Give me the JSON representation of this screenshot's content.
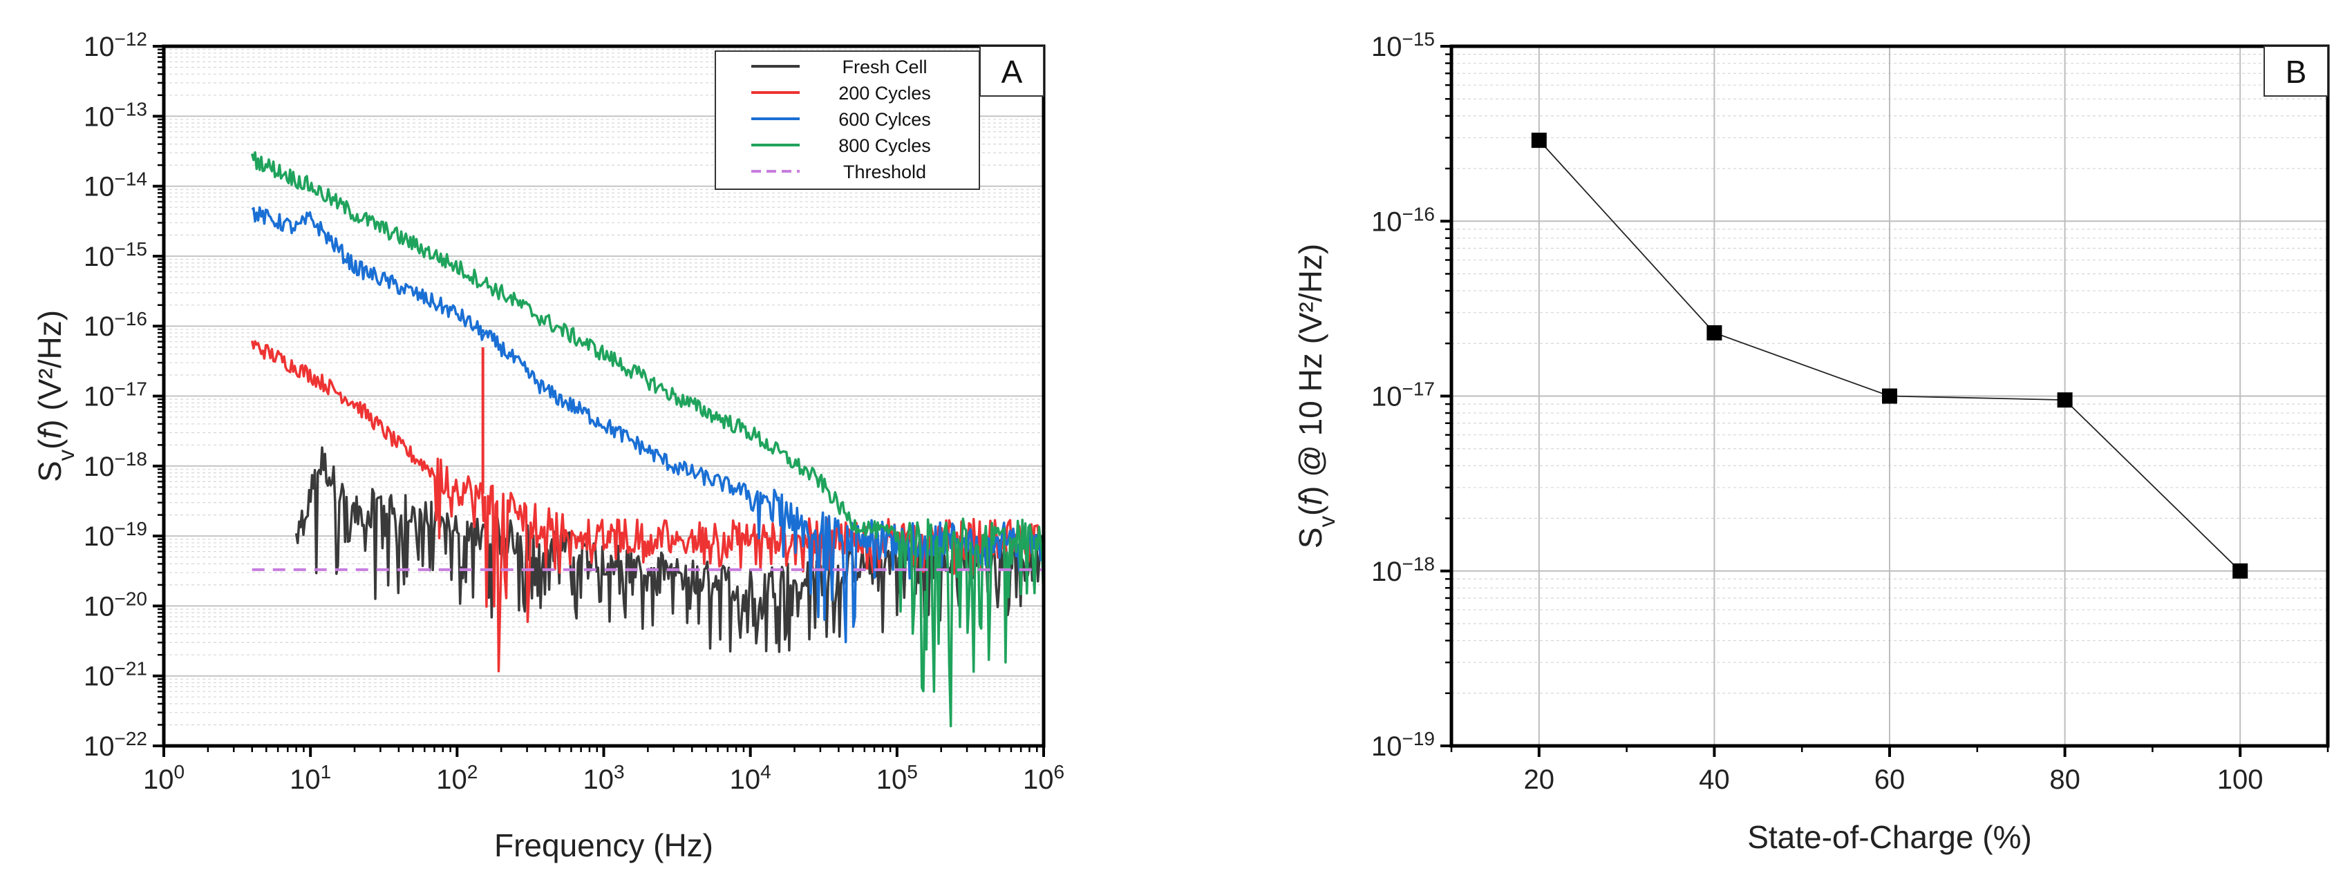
{
  "chart_data": [
    {
      "panel": "A",
      "type": "line",
      "xscale": "log",
      "yscale": "log",
      "xlabel": "Frequency (Hz)",
      "ylabel": "Sv(f) (V²/Hz)",
      "ylabel_parts": {
        "s": "S",
        "sub": "v",
        "open": "(",
        "f": "f",
        "close": ") (V²/Hz)"
      },
      "xlim": [
        1,
        1000000
      ],
      "ylim": [
        1e-22,
        1e-12
      ],
      "x_ticks": [
        {
          "value": 1,
          "base": "10",
          "exp": "0"
        },
        {
          "value": 10,
          "base": "10",
          "exp": "1"
        },
        {
          "value": 100,
          "base": "10",
          "exp": "2"
        },
        {
          "value": 1000,
          "base": "10",
          "exp": "3"
        },
        {
          "value": 10000,
          "base": "10",
          "exp": "4"
        },
        {
          "value": 100000,
          "base": "10",
          "exp": "5"
        },
        {
          "value": 1000000,
          "base": "10",
          "exp": "6"
        }
      ],
      "y_ticks": [
        {
          "value": 1e-12,
          "base": "10",
          "exp": "−12"
        },
        {
          "value": 1e-13,
          "base": "10",
          "exp": "−13"
        },
        {
          "value": 1e-14,
          "base": "10",
          "exp": "−14"
        },
        {
          "value": 1e-15,
          "base": "10",
          "exp": "−15"
        },
        {
          "value": 1e-16,
          "base": "10",
          "exp": "−16"
        },
        {
          "value": 1e-17,
          "base": "10",
          "exp": "−17"
        },
        {
          "value": 1e-18,
          "base": "10",
          "exp": "−18"
        },
        {
          "value": 1e-19,
          "base": "10",
          "exp": "−19"
        },
        {
          "value": 1e-20,
          "base": "10",
          "exp": "−20"
        },
        {
          "value": 1e-21,
          "base": "10",
          "exp": "−21"
        },
        {
          "value": 1e-22,
          "base": "10",
          "exp": "−22"
        }
      ],
      "grid": true,
      "legend_position": "top-right",
      "series": [
        {
          "name": "Fresh Cell",
          "color": "#3a3a3a",
          "style": "solid",
          "points": [
            [
              8,
              1e-19
            ],
            [
              12,
              1.2e-18
            ],
            [
              15,
              5e-19
            ],
            [
              20,
              2e-19
            ],
            [
              30,
              3e-19
            ],
            [
              50,
              2e-19
            ],
            [
              100,
              1.5e-19
            ],
            [
              200,
              1e-19
            ],
            [
              400,
              8e-20
            ],
            [
              1000,
              5e-20
            ],
            [
              3000,
              3e-20
            ],
            [
              10000,
              2e-20
            ],
            [
              30000,
              3e-20
            ],
            [
              100000,
              5e-20
            ],
            [
              300000,
              6e-20
            ],
            [
              1000000,
              6e-20
            ]
          ],
          "noise_floor": [
            [
              8,
              2e-20
            ],
            [
              100,
              1e-20
            ],
            [
              1000,
              5e-21
            ],
            [
              10000,
              2e-21
            ],
            [
              100000,
              5e-21
            ],
            [
              1000000,
              1e-20
            ]
          ]
        },
        {
          "name": "200 Cycles",
          "color": "#ee3333",
          "style": "solid",
          "points": [
            [
              4,
              5.5e-17
            ],
            [
              10,
              2e-17
            ],
            [
              20,
              8e-18
            ],
            [
              40,
              2e-18
            ],
            [
              70,
              8e-19
            ],
            [
              100,
              5e-19
            ],
            [
              150,
              4e-19
            ],
            [
              200,
              3e-19
            ],
            [
              300,
              2e-19
            ],
            [
              400,
              1.5e-19
            ],
            [
              1000,
              1e-19
            ],
            [
              10000,
              1e-19
            ],
            [
              100000,
              1e-19
            ],
            [
              1000000,
              1e-19
            ]
          ],
          "spikes": [
            {
              "x": 150,
              "y": 5e-17
            }
          ],
          "noise_floor": [
            [
              70,
              8e-20
            ],
            [
              200,
              1e-21
            ],
            [
              400,
              3e-20
            ],
            [
              1000,
              5e-20
            ],
            [
              10000,
              3e-20
            ],
            [
              100000,
              3e-20
            ],
            [
              1000000,
              4e-20
            ]
          ]
        },
        {
          "name": "600 Cylces",
          "color": "#1a6fd4",
          "style": "solid",
          "points": [
            [
              4,
              4.2e-15
            ],
            [
              8,
              2.5e-15
            ],
            [
              10,
              3.5e-15
            ],
            [
              20,
              7e-16
            ],
            [
              50,
              3e-16
            ],
            [
              100,
              1.5e-16
            ],
            [
              200,
              5e-17
            ],
            [
              400,
              1.2e-17
            ],
            [
              1000,
              4e-18
            ],
            [
              3000,
              1e-18
            ],
            [
              10000,
              4e-19
            ],
            [
              30000,
              1.3e-19
            ],
            [
              40000,
              1e-19
            ],
            [
              100000,
              9e-20
            ],
            [
              1000000,
              9e-20
            ]
          ],
          "spikes": [
            {
              "x": 150,
              "y": 9e-17
            }
          ],
          "noise_floor": [
            [
              10000,
              6e-20
            ],
            [
              30000,
              3e-21
            ],
            [
              40000,
              1e-21
            ],
            [
              100000,
              3e-20
            ],
            [
              1000000,
              3e-20
            ]
          ]
        },
        {
          "name": "800 Cycles",
          "color": "#1fa35c",
          "style": "solid",
          "points": [
            [
              4,
              2.5e-14
            ],
            [
              10,
              1e-14
            ],
            [
              20,
              4e-15
            ],
            [
              50,
              1.5e-15
            ],
            [
              100,
              7e-16
            ],
            [
              200,
              3e-16
            ],
            [
              400,
              1.2e-16
            ],
            [
              1000,
              4e-17
            ],
            [
              3000,
              1e-17
            ],
            [
              10000,
              3e-18
            ],
            [
              30000,
              6e-19
            ],
            [
              50000,
              1.5e-19
            ],
            [
              100000,
              1e-19
            ],
            [
              1000000,
              1e-19
            ]
          ],
          "noise_floor": [
            [
              100000,
              1e-21
            ],
            [
              300000,
              1e-22
            ],
            [
              1000000,
              3e-21
            ]
          ]
        },
        {
          "name": "Threshold",
          "color": "#c77dde",
          "style": "dashed",
          "points": [
            [
              4,
              3.3e-20
            ],
            [
              1000000,
              3.3e-20
            ]
          ]
        }
      ]
    },
    {
      "panel": "B",
      "type": "line",
      "xscale": "linear",
      "yscale": "log",
      "xlabel": "State-of-Charge (%)",
      "ylabel": "Sv(f) @ 10 Hz (V²/Hz)",
      "ylabel_parts": {
        "s": "S",
        "sub": "v",
        "open": "(",
        "f": "f",
        "close": ") @ 10 Hz (V²/Hz)"
      },
      "xlim": [
        10,
        110
      ],
      "ylim": [
        1e-19,
        1e-15
      ],
      "x_ticks": [
        20,
        40,
        60,
        80,
        100
      ],
      "y_ticks": [
        {
          "value": 1e-15,
          "base": "10",
          "exp": "−15"
        },
        {
          "value": 1e-16,
          "base": "10",
          "exp": "−16"
        },
        {
          "value": 1e-17,
          "base": "10",
          "exp": "−17"
        },
        {
          "value": 1e-18,
          "base": "10",
          "exp": "−18"
        },
        {
          "value": 1e-19,
          "base": "10",
          "exp": "−19"
        }
      ],
      "grid": true,
      "series": [
        {
          "name": "Sv(f) @ 10 Hz",
          "color": "#000000",
          "x": [
            20,
            40,
            60,
            80,
            100
          ],
          "y": [
            2.9e-16,
            2.3e-17,
            1e-17,
            9.5e-18,
            1e-18
          ]
        }
      ]
    }
  ]
}
